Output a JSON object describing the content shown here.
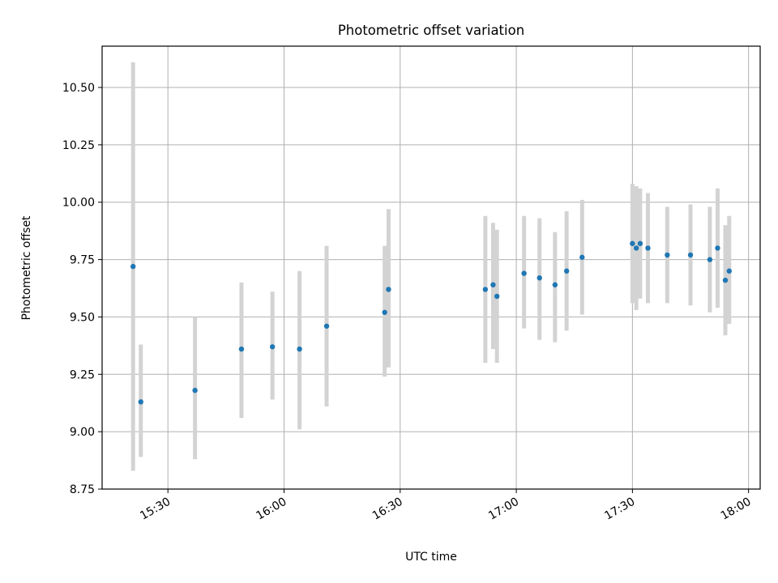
{
  "chart_data": {
    "type": "scatter",
    "title": "Photometric offset variation",
    "xlabel": "UTC time",
    "ylabel": "Photometric offset",
    "x_is_time": true,
    "xlim": [
      "15:13",
      "18:03"
    ],
    "ylim": [
      8.75,
      10.68
    ],
    "xticks": [
      "15:30",
      "16:00",
      "16:30",
      "17:00",
      "17:30",
      "18:00"
    ],
    "yticks": [
      "8.75",
      "9.00",
      "9.25",
      "9.50",
      "9.75",
      "10.00",
      "10.25",
      "10.50"
    ],
    "grid": true,
    "marker_color": "#1f77b4",
    "errorbar_color": "#d3d3d3",
    "points": [
      {
        "x": "15:21",
        "y": 9.72,
        "ylow": 8.83,
        "yhigh": 10.61
      },
      {
        "x": "15:23",
        "y": 9.13,
        "ylow": 8.89,
        "yhigh": 9.38
      },
      {
        "x": "15:37",
        "y": 9.18,
        "ylow": 8.88,
        "yhigh": 9.5
      },
      {
        "x": "15:49",
        "y": 9.36,
        "ylow": 9.06,
        "yhigh": 9.65
      },
      {
        "x": "15:57",
        "y": 9.37,
        "ylow": 9.14,
        "yhigh": 9.61
      },
      {
        "x": "16:04",
        "y": 9.36,
        "ylow": 9.01,
        "yhigh": 9.7
      },
      {
        "x": "16:11",
        "y": 9.46,
        "ylow": 9.11,
        "yhigh": 9.81
      },
      {
        "x": "16:26",
        "y": 9.52,
        "ylow": 9.24,
        "yhigh": 9.81
      },
      {
        "x": "16:27",
        "y": 9.62,
        "ylow": 9.28,
        "yhigh": 9.97
      },
      {
        "x": "16:52",
        "y": 9.62,
        "ylow": 9.3,
        "yhigh": 9.94
      },
      {
        "x": "16:54",
        "y": 9.64,
        "ylow": 9.36,
        "yhigh": 9.91
      },
      {
        "x": "16:55",
        "y": 9.59,
        "ylow": 9.3,
        "yhigh": 9.88
      },
      {
        "x": "17:02",
        "y": 9.69,
        "ylow": 9.45,
        "yhigh": 9.94
      },
      {
        "x": "17:06",
        "y": 9.67,
        "ylow": 9.4,
        "yhigh": 9.93
      },
      {
        "x": "17:10",
        "y": 9.64,
        "ylow": 9.39,
        "yhigh": 9.87
      },
      {
        "x": "17:13",
        "y": 9.7,
        "ylow": 9.44,
        "yhigh": 9.96
      },
      {
        "x": "17:17",
        "y": 9.76,
        "ylow": 9.51,
        "yhigh": 10.01
      },
      {
        "x": "17:30",
        "y": 9.82,
        "ylow": 9.56,
        "yhigh": 10.08
      },
      {
        "x": "17:31",
        "y": 9.8,
        "ylow": 9.53,
        "yhigh": 10.07
      },
      {
        "x": "17:32",
        "y": 9.82,
        "ylow": 9.58,
        "yhigh": 10.06
      },
      {
        "x": "17:34",
        "y": 9.8,
        "ylow": 9.56,
        "yhigh": 10.04
      },
      {
        "x": "17:39",
        "y": 9.77,
        "ylow": 9.56,
        "yhigh": 9.98
      },
      {
        "x": "17:45",
        "y": 9.77,
        "ylow": 9.55,
        "yhigh": 9.99
      },
      {
        "x": "17:50",
        "y": 9.75,
        "ylow": 9.52,
        "yhigh": 9.98
      },
      {
        "x": "17:52",
        "y": 9.8,
        "ylow": 9.54,
        "yhigh": 10.06
      },
      {
        "x": "17:54",
        "y": 9.66,
        "ylow": 9.42,
        "yhigh": 9.9
      },
      {
        "x": "17:55",
        "y": 9.7,
        "ylow": 9.47,
        "yhigh": 9.94
      }
    ]
  }
}
